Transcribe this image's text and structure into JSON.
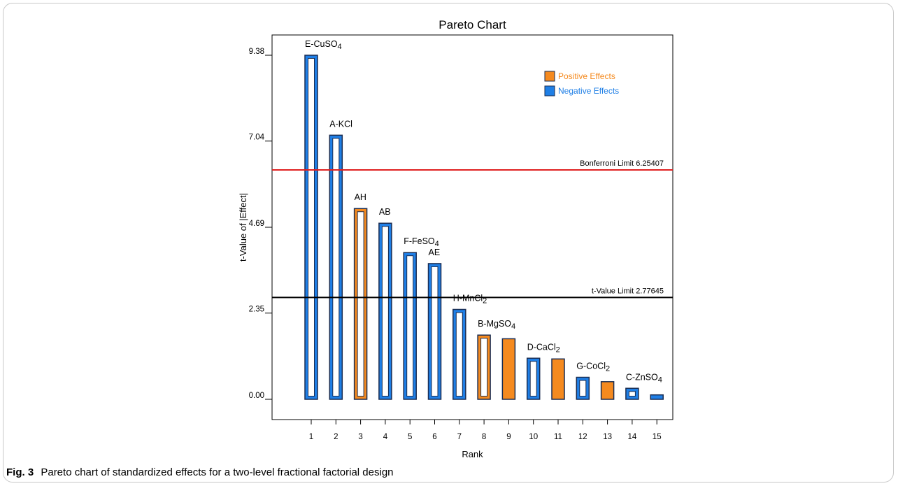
{
  "caption": {
    "label": "Fig. 3",
    "text": "Pareto chart of standardized effects for a two-level fractional factorial design"
  },
  "colors": {
    "positive": "#F58A1F",
    "negative": "#1F7FE6",
    "outline": "#1a2d52",
    "bonferroni": "#e02020",
    "tlimit": "#000000"
  },
  "chart_data": {
    "type": "bar",
    "title": "Pareto Chart",
    "xlabel": "Rank",
    "ylabel": "t-Value of |Effect|",
    "ylim": [
      0,
      9.38
    ],
    "y_ticks": [
      0.0,
      2.35,
      4.69,
      7.04,
      9.38
    ],
    "y_tick_labels": [
      "0.00",
      "2.35",
      "4.69",
      "7.04",
      "9.38"
    ],
    "categories": [
      "1",
      "2",
      "3",
      "4",
      "5",
      "6",
      "7",
      "8",
      "9",
      "10",
      "11",
      "12",
      "13",
      "14",
      "15"
    ],
    "values": [
      9.38,
      7.2,
      5.2,
      4.8,
      4.0,
      3.7,
      2.45,
      1.75,
      1.65,
      1.12,
      1.1,
      0.6,
      0.48,
      0.3,
      0.12
    ],
    "effect": [
      "negative",
      "negative",
      "positive",
      "negative",
      "negative",
      "negative",
      "negative",
      "positive",
      "positive",
      "negative",
      "positive",
      "negative",
      "positive",
      "negative",
      "negative"
    ],
    "style": [
      "outline",
      "outline",
      "outline",
      "outline",
      "outline",
      "outline",
      "outline",
      "outline",
      "filled",
      "outline",
      "filled",
      "outline",
      "filled",
      "outline",
      "filled"
    ],
    "bar_labels": [
      {
        "main": "E-CuSO",
        "sub": "4"
      },
      {
        "main": "A-KCl",
        "sub": ""
      },
      {
        "main": "AH",
        "sub": ""
      },
      {
        "main": "AB",
        "sub": ""
      },
      {
        "main": "F-FeSO",
        "sub": "4"
      },
      {
        "main": "AE",
        "sub": ""
      },
      {
        "main": "H-MnCl",
        "sub": "2"
      },
      {
        "main": "B-MgSO",
        "sub": "4"
      },
      {
        "main": "",
        "sub": ""
      },
      {
        "main": "D-CaCl",
        "sub": "2"
      },
      {
        "main": "",
        "sub": ""
      },
      {
        "main": "G-CoCl",
        "sub": "2"
      },
      {
        "main": "",
        "sub": ""
      },
      {
        "main": "C-ZnSO",
        "sub": "4"
      },
      {
        "main": "",
        "sub": ""
      }
    ],
    "reference_lines": [
      {
        "name": "bonferroni",
        "label": "Bonferroni Limit 6.25407",
        "value": 6.25407
      },
      {
        "name": "t-value",
        "label": "t-Value Limit 2.77645",
        "value": 2.77645
      }
    ],
    "legend": {
      "position": "top-right",
      "entries": [
        {
          "label": "Positive Effects",
          "effect": "positive"
        },
        {
          "label": "Negative Effects",
          "effect": "negative"
        }
      ]
    }
  }
}
